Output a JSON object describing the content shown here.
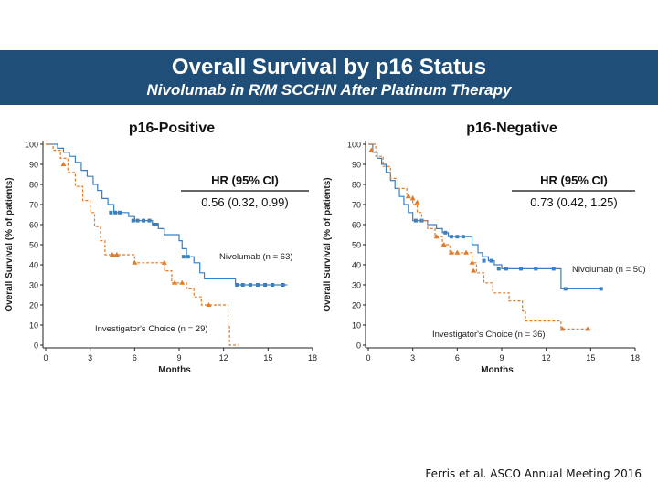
{
  "header": {
    "title": "Overall Survival by p16 Status",
    "subtitle": "Nivolumab in R/M SCCHN After Platinum Therapy"
  },
  "citation": "Ferris et al. ASCO Annual Meeting 2016",
  "colors": {
    "banner": "#1f4e79",
    "nivolumab": "#3a7fc0",
    "investigator": "#e07b2a"
  },
  "chart_data": [
    {
      "type": "line",
      "title": "p16-Positive",
      "xlabel": "Months",
      "ylabel": "Overall Survival (% of patients)",
      "xlim": [
        0,
        18
      ],
      "ylim": [
        0,
        100
      ],
      "xticks": [
        0,
        3,
        6,
        9,
        12,
        15,
        18
      ],
      "yticks": [
        0,
        10,
        20,
        30,
        40,
        50,
        60,
        70,
        80,
        90,
        100
      ],
      "hr_label": "HR (95% CI)",
      "hr_value": "0.56 (0.32, 0.99)",
      "series": [
        {
          "name": "Nivolumab (n = 63)",
          "style": "solid",
          "marker": "square",
          "steps": [
            [
              0,
              100
            ],
            [
              0.8,
              98
            ],
            [
              1.2,
              96
            ],
            [
              1.6,
              94
            ],
            [
              2,
              91
            ],
            [
              2.4,
              87
            ],
            [
              2.8,
              84
            ],
            [
              3.2,
              80
            ],
            [
              3.5,
              77
            ],
            [
              3.8,
              73
            ],
            [
              4.2,
              70
            ],
            [
              4.6,
              66
            ],
            [
              5.6,
              64
            ],
            [
              6,
              62
            ],
            [
              7.2,
              60
            ],
            [
              7.6,
              58
            ],
            [
              8,
              55
            ],
            [
              9,
              52
            ],
            [
              9.2,
              48
            ],
            [
              9.5,
              44
            ],
            [
              10,
              41
            ],
            [
              10.4,
              36
            ],
            [
              10.7,
              33
            ],
            [
              12.8,
              30
            ],
            [
              16.3,
              30
            ]
          ],
          "censors": [
            [
              4.4,
              66
            ],
            [
              4.7,
              66
            ],
            [
              5,
              66
            ],
            [
              5.9,
              62
            ],
            [
              6.2,
              62
            ],
            [
              6.6,
              62
            ],
            [
              7,
              62
            ],
            [
              7.3,
              60
            ],
            [
              7.5,
              60
            ],
            [
              9.3,
              44
            ],
            [
              9.6,
              44
            ],
            [
              12.9,
              30
            ],
            [
              13.3,
              30
            ],
            [
              13.8,
              30
            ],
            [
              14.3,
              30
            ],
            [
              14.8,
              30
            ],
            [
              15.3,
              30
            ],
            [
              16,
              30
            ]
          ]
        },
        {
          "name": "Investigator's Choice (n = 29)",
          "style": "dashed",
          "marker": "triangle",
          "steps": [
            [
              0,
              100
            ],
            [
              0.5,
              97
            ],
            [
              1,
              93
            ],
            [
              1.5,
              86
            ],
            [
              2,
              79
            ],
            [
              2.5,
              72
            ],
            [
              3,
              66
            ],
            [
              3.3,
              59
            ],
            [
              3.7,
              52
            ],
            [
              4,
              45
            ],
            [
              6,
              41
            ],
            [
              8,
              37
            ],
            [
              8.5,
              31
            ],
            [
              9.5,
              28
            ],
            [
              10,
              24
            ],
            [
              10.5,
              20
            ],
            [
              12.3,
              10
            ],
            [
              12.4,
              0
            ],
            [
              13,
              0
            ]
          ],
          "censors": [
            [
              1.2,
              90
            ],
            [
              4.5,
              45
            ],
            [
              4.8,
              45
            ],
            [
              6,
              41
            ],
            [
              8,
              41
            ],
            [
              8.7,
              31
            ],
            [
              9.2,
              31
            ],
            [
              11,
              20
            ]
          ]
        }
      ]
    },
    {
      "type": "line",
      "title": "p16-Negative",
      "xlabel": "Months",
      "ylabel": "Overall Survival (% of patients)",
      "xlim": [
        0,
        18
      ],
      "ylim": [
        0,
        100
      ],
      "xticks": [
        0,
        3,
        6,
        9,
        12,
        15,
        18
      ],
      "yticks": [
        0,
        10,
        20,
        30,
        40,
        50,
        60,
        70,
        80,
        90,
        100
      ],
      "hr_label": "HR (95% CI)",
      "hr_value": "0.73 (0.42, 1.25)",
      "series": [
        {
          "name": "Nivolumab (n = 50)",
          "style": "solid",
          "marker": "square",
          "steps": [
            [
              0,
              100
            ],
            [
              0.3,
              96
            ],
            [
              0.6,
              93
            ],
            [
              0.9,
              90
            ],
            [
              1.2,
              86
            ],
            [
              1.5,
              82
            ],
            [
              1.8,
              78
            ],
            [
              2.1,
              74
            ],
            [
              2.4,
              70
            ],
            [
              2.7,
              66
            ],
            [
              3,
              62
            ],
            [
              4,
              60
            ],
            [
              4.6,
              58
            ],
            [
              5,
              56
            ],
            [
              5.4,
              54
            ],
            [
              7,
              50
            ],
            [
              7.4,
              46
            ],
            [
              7.7,
              44
            ],
            [
              8.1,
              42
            ],
            [
              8.5,
              40
            ],
            [
              9,
              38
            ],
            [
              12.8,
              38
            ],
            [
              13,
              28
            ],
            [
              15.8,
              28
            ]
          ],
          "censors": [
            [
              3.2,
              62
            ],
            [
              3.6,
              62
            ],
            [
              5.2,
              56
            ],
            [
              5.6,
              54
            ],
            [
              6,
              54
            ],
            [
              6.4,
              54
            ],
            [
              7.8,
              42
            ],
            [
              8.3,
              42
            ],
            [
              8.8,
              38
            ],
            [
              9.3,
              38
            ],
            [
              10.3,
              38
            ],
            [
              11.3,
              38
            ],
            [
              12.5,
              38
            ],
            [
              13.3,
              28
            ],
            [
              15.7,
              28
            ]
          ]
        },
        {
          "name": "Investigator's Choice (n = 36)",
          "style": "dashed",
          "marker": "triangle",
          "steps": [
            [
              0,
              100
            ],
            [
              0.5,
              94
            ],
            [
              1,
              89
            ],
            [
              1.5,
              83
            ],
            [
              2,
              78
            ],
            [
              2.6,
              74
            ],
            [
              3,
              70
            ],
            [
              3.3,
              66
            ],
            [
              3.6,
              62
            ],
            [
              4,
              58
            ],
            [
              4.5,
              54
            ],
            [
              5,
              50
            ],
            [
              5.5,
              46
            ],
            [
              7,
              41
            ],
            [
              7.3,
              36
            ],
            [
              7.8,
              31
            ],
            [
              8.4,
              26
            ],
            [
              9.5,
              22
            ],
            [
              10.4,
              17
            ],
            [
              10.6,
              12
            ],
            [
              13,
              8
            ],
            [
              15,
              8
            ]
          ],
          "censors": [
            [
              0.2,
              97
            ],
            [
              2.7,
              74
            ],
            [
              3,
              73
            ],
            [
              3.3,
              71
            ],
            [
              4.6,
              54
            ],
            [
              5.1,
              50
            ],
            [
              5.6,
              46
            ],
            [
              6,
              46
            ],
            [
              6.6,
              46
            ],
            [
              7,
              41
            ],
            [
              7.1,
              37
            ],
            [
              13.1,
              8
            ],
            [
              14.8,
              8
            ]
          ]
        }
      ]
    }
  ]
}
